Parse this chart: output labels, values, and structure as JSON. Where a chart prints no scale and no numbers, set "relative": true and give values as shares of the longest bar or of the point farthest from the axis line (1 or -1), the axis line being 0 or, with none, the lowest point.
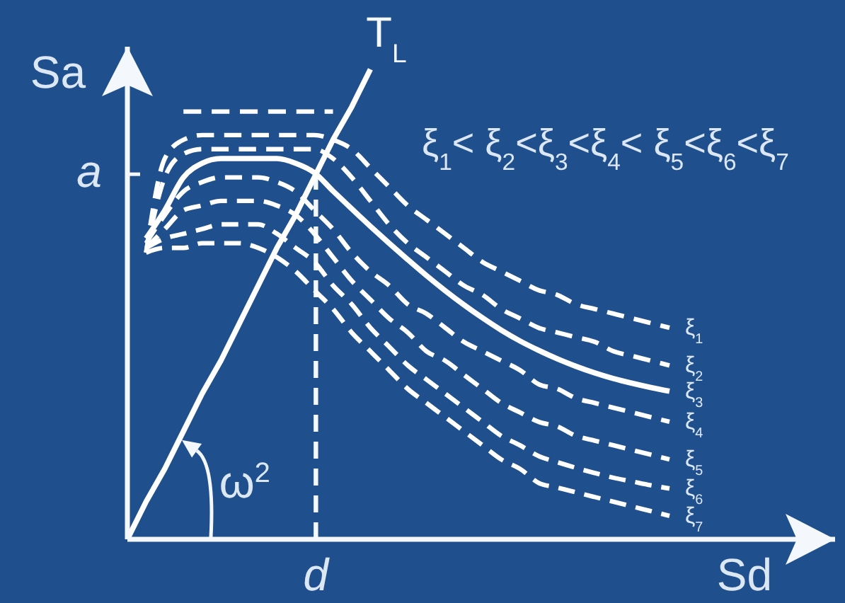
{
  "chart_data": {
    "type": "line",
    "relative": true,
    "xlabel": "Sd",
    "ylabel": "Sa",
    "line_style": "dashed",
    "categories": [
      null,
      null,
      null,
      null,
      null,
      null,
      null,
      null,
      null,
      null,
      null,
      null,
      null,
      null,
      null,
      null,
      null,
      null,
      null,
      null,
      null,
      null,
      null,
      null,
      null,
      null,
      null,
      null,
      null,
      null
    ],
    "annotations": [
      "ξ$_{1}$< ξ$_{2}$<ξ$_{3}$<ξ$_{4}$< ξ$_{5}$<ξ$_{6}$<ξ$_{7}$",
      "a",
      "d",
      "ω$^{2}$"
    ],
    "series": [
      {
        "color": "#ffffff",
        "values": [
          null,
          null,
          null,
          0.91,
          0.91,
          0.91,
          0.91,
          0.91,
          0.91,
          0.91,
          0.91,
          0.91,
          null,
          null,
          null,
          null,
          null,
          null,
          null,
          null,
          null,
          null,
          null,
          null,
          null,
          null,
          null,
          null,
          null,
          null
        ]
      },
      {
        "name": "ξ$_{1}$",
        "color": "#ffffff",
        "values": [
          null,
          0.61,
          0.81,
          0.85,
          0.86,
          0.86,
          0.86,
          0.86,
          0.86,
          0.86,
          0.86,
          0.85,
          0.83,
          0.79,
          0.75,
          0.71,
          0.68,
          0.65,
          0.62,
          0.59,
          0.57,
          0.55,
          0.53,
          0.52,
          0.5,
          0.49,
          0.48,
          0.47,
          0.46,
          0.45
        ]
      },
      {
        "name": "ξ$_{2}$",
        "color": "#ffffff",
        "values": [
          null,
          0.61,
          0.77,
          0.82,
          0.83,
          0.83,
          0.83,
          0.83,
          0.83,
          0.83,
          0.83,
          0.81,
          0.77,
          0.72,
          0.67,
          0.63,
          0.6,
          0.57,
          0.54,
          0.52,
          0.49,
          0.47,
          0.45,
          0.44,
          0.43,
          0.42,
          0.4,
          0.39,
          0.38,
          0.37
        ]
      },
      {
        "name": "ξ$_{3}$",
        "color": "#ffffff",
        "line_style": "solid",
        "values": [
          null,
          0.64,
          0.7,
          0.77,
          0.8,
          0.81,
          0.81,
          0.81,
          0.81,
          0.8,
          0.78,
          0.741,
          0.703,
          0.666,
          0.63,
          0.595,
          0.561,
          0.529,
          0.499,
          0.471,
          0.445,
          0.422,
          0.402,
          0.384,
          0.368,
          0.354,
          0.342,
          0.332,
          0.323,
          0.315
        ]
      },
      {
        "name": "ξ$_{4}$",
        "color": "#ffffff",
        "values": [
          null,
          0.63,
          0.69,
          0.74,
          0.76,
          0.77,
          0.77,
          0.77,
          0.76,
          0.74,
          0.7,
          0.66,
          0.61,
          0.57,
          0.54,
          0.5,
          0.48,
          0.45,
          0.42,
          0.4,
          0.38,
          0.36,
          0.33,
          0.32,
          0.3,
          0.29,
          0.28,
          0.27,
          0.26,
          0.25
        ]
      },
      {
        "name": "ξ$_{5}$",
        "color": "#ffffff",
        "values": [
          null,
          0.62,
          0.66,
          0.7,
          0.71,
          0.72,
          0.72,
          0.72,
          0.71,
          0.69,
          0.65,
          0.6,
          0.55,
          0.51,
          0.47,
          0.44,
          0.4,
          0.38,
          0.35,
          0.32,
          0.29,
          0.27,
          0.25,
          0.24,
          0.22,
          0.21,
          0.2,
          0.19,
          0.18,
          0.17
        ]
      },
      {
        "name": "ξ$_{6}$",
        "color": "#ffffff",
        "values": [
          null,
          0.62,
          0.64,
          0.65,
          0.66,
          0.67,
          0.67,
          0.67,
          0.65,
          0.62,
          0.59,
          0.54,
          0.5,
          0.45,
          0.41,
          0.37,
          0.34,
          0.31,
          0.28,
          0.25,
          0.22,
          0.2,
          0.177,
          0.164,
          0.152,
          0.141,
          0.131,
          0.123,
          0.115,
          0.108
        ]
      },
      {
        "name": "ξ$_{7}$",
        "color": "#ffffff",
        "values": [
          null,
          0.61,
          0.62,
          0.62,
          0.63,
          0.63,
          0.63,
          0.62,
          0.6,
          0.57,
          0.53,
          0.49,
          0.44,
          0.4,
          0.36,
          0.32,
          0.29,
          0.26,
          0.23,
          0.2,
          0.17,
          0.15,
          0.12,
          0.11,
          0.1,
          0.09,
          0.08,
          0.07,
          0.06,
          0.05
        ]
      },
      {
        "name": "T$_{L}$",
        "color": "#ffffff",
        "line_style": "solid",
        "values": [
          0,
          0.08,
          0.15,
          0.23,
          0.31,
          0.38,
          0.46,
          0.54,
          0.62,
          0.69,
          0.77,
          0.85,
          0.92,
          1,
          null,
          null,
          null,
          null,
          null,
          null,
          null,
          null,
          null,
          null,
          null,
          null,
          null,
          null,
          null,
          null
        ]
      }
    ]
  }
}
